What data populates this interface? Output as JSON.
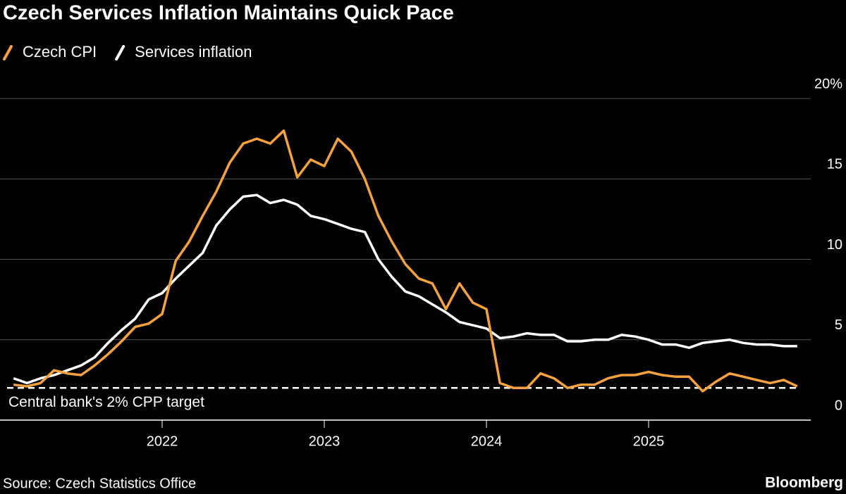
{
  "chart_data": {
    "type": "line",
    "title": "Czech Services Inflation Maintains Quick Pace",
    "source": "Source: Czech Statistics Office",
    "brand": "Bloomberg",
    "x": [
      "2021-01",
      "2021-02",
      "2021-03",
      "2021-04",
      "2021-05",
      "2021-06",
      "2021-07",
      "2021-08",
      "2021-09",
      "2021-10",
      "2021-11",
      "2021-12",
      "2022-01",
      "2022-02",
      "2022-03",
      "2022-04",
      "2022-05",
      "2022-06",
      "2022-07",
      "2022-08",
      "2022-09",
      "2022-10",
      "2022-11",
      "2022-12",
      "2023-01",
      "2023-02",
      "2023-03",
      "2023-04",
      "2023-05",
      "2023-06",
      "2023-07",
      "2023-08",
      "2023-09",
      "2023-10",
      "2023-11",
      "2023-12",
      "2024-01",
      "2024-02",
      "2024-03",
      "2024-04",
      "2024-05",
      "2024-06",
      "2024-07",
      "2024-08",
      "2024-09",
      "2024-10",
      "2024-11",
      "2024-12",
      "2025-01",
      "2025-02",
      "2025-03",
      "2025-04",
      "2025-05",
      "2025-06",
      "2025-07",
      "2025-08",
      "2025-09",
      "2025-10",
      "2025-11"
    ],
    "series": [
      {
        "name": "Czech CPI",
        "color": "#f7a23c",
        "values": [
          2.2,
          2.1,
          2.3,
          3.1,
          2.9,
          2.8,
          3.4,
          4.1,
          4.9,
          5.8,
          6.0,
          6.6,
          9.9,
          11.1,
          12.7,
          14.2,
          16.0,
          17.2,
          17.5,
          17.2,
          18.0,
          15.1,
          16.2,
          15.8,
          17.5,
          16.7,
          15.0,
          12.7,
          11.1,
          9.7,
          8.8,
          8.5,
          6.9,
          8.5,
          7.3,
          6.9,
          2.3,
          2.0,
          2.0,
          2.9,
          2.6,
          2.0,
          2.2,
          2.2,
          2.6,
          2.8,
          2.8,
          3.0,
          2.8,
          2.7,
          2.7,
          1.8,
          2.4,
          2.9,
          2.7,
          2.5,
          2.3,
          2.5,
          2.1
        ]
      },
      {
        "name": "Services inflation",
        "color": "#ffffff",
        "values": [
          2.6,
          2.3,
          2.6,
          2.8,
          3.1,
          3.4,
          3.9,
          4.8,
          5.6,
          6.3,
          7.5,
          7.9,
          8.8,
          9.6,
          10.4,
          12.1,
          13.1,
          13.9,
          14.0,
          13.5,
          13.7,
          13.4,
          12.7,
          12.5,
          12.2,
          11.9,
          11.7,
          10.0,
          8.9,
          8.0,
          7.7,
          7.2,
          6.7,
          6.1,
          5.9,
          5.7,
          5.1,
          5.2,
          5.4,
          5.3,
          5.3,
          4.9,
          4.9,
          5.0,
          5.0,
          5.3,
          5.2,
          5.0,
          4.7,
          4.7,
          4.5,
          4.8,
          4.9,
          5.0,
          4.8,
          4.7,
          4.7,
          4.6,
          4.6
        ]
      }
    ],
    "target": {
      "value": 2,
      "label": "Central bank's 2% CPP target"
    },
    "xlim": [
      "2020-12",
      "2025-12"
    ],
    "xticks": [
      "2022",
      "2023",
      "2024",
      "2025"
    ],
    "ylim": [
      0,
      20
    ],
    "yticks": [
      0,
      5,
      10,
      15,
      {
        "value": 20,
        "label": "20%"
      }
    ],
    "grid": true
  }
}
